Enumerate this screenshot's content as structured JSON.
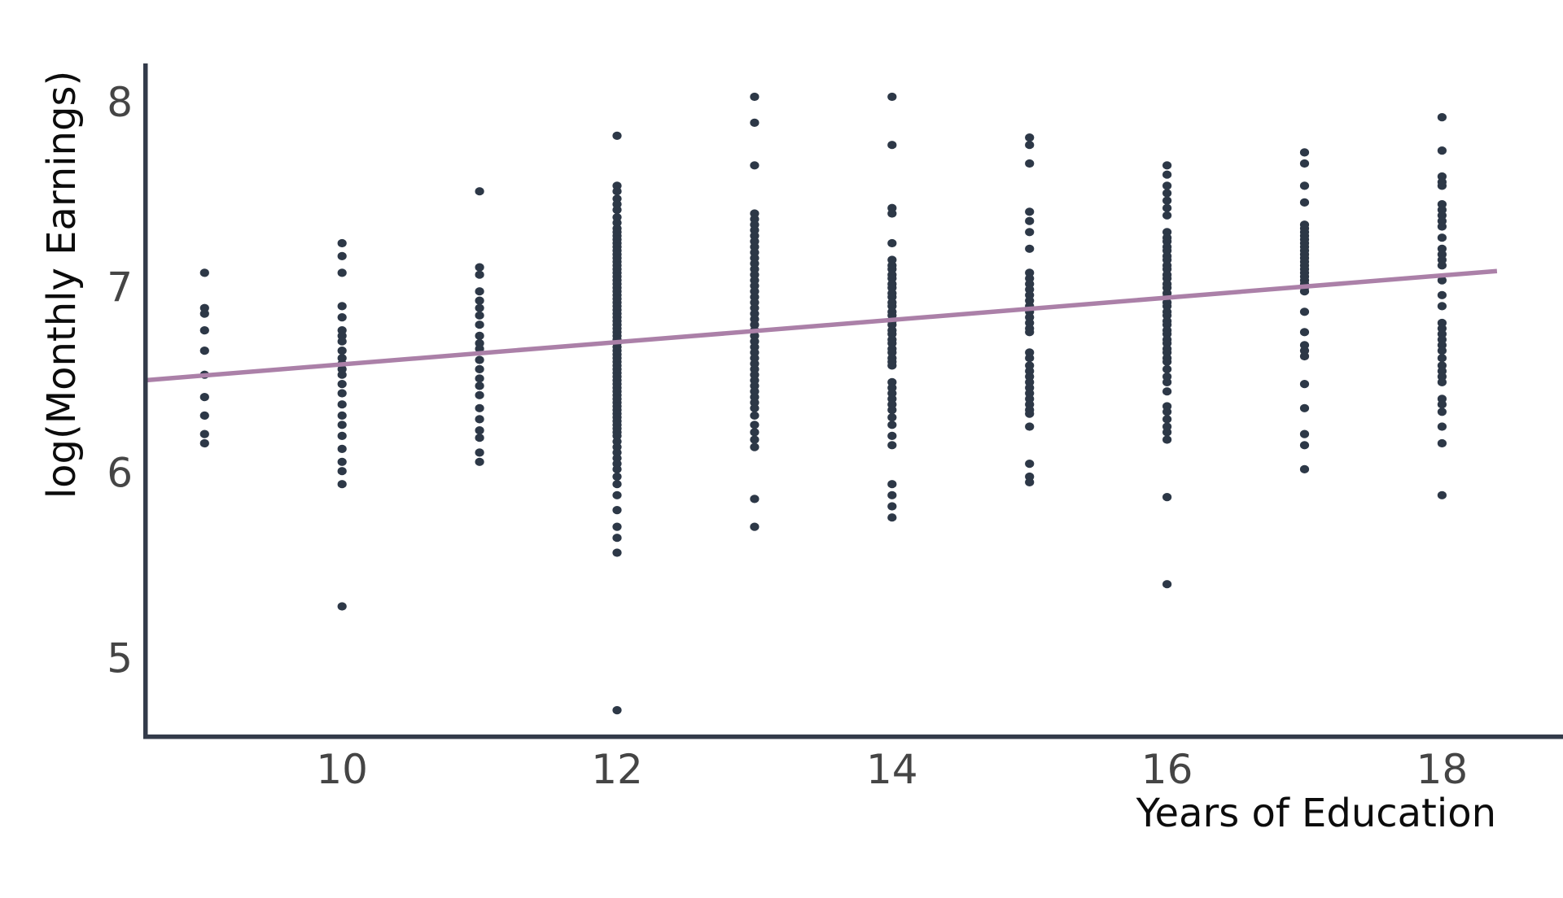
{
  "chart_data": {
    "type": "scatter",
    "title": "",
    "xlabel": "Years of Education",
    "ylabel": "log(Monthly Earnings)",
    "x_ticks": [
      10,
      12,
      14,
      16,
      18
    ],
    "y_ticks": [
      5,
      6,
      7,
      8
    ],
    "xlim": [
      8.56,
      18.88
    ],
    "ylim": [
      4.58,
      8.21
    ],
    "grid": false,
    "legend": "none",
    "colors": {
      "point": "#2d3847",
      "trend": "#ab80a8",
      "axis": "#333b4a",
      "tick": "#454545",
      "label": "#0c0c0c",
      "background": "#ffffff"
    },
    "regression_line": {
      "x1": 8.56,
      "y1": 6.5,
      "x2": 18.4,
      "y2": 7.09,
      "slope": 0.06,
      "intercept": 5.99
    },
    "groups": [
      {
        "x": 9,
        "y": [
          7.08,
          6.89,
          6.86,
          6.77,
          6.66,
          6.53,
          6.41,
          6.31,
          6.21,
          6.16
        ]
      },
      {
        "x": 10,
        "y": [
          7.24,
          7.17,
          7.08,
          6.9,
          6.84,
          6.77,
          6.74,
          6.71,
          6.66,
          6.62,
          6.59,
          6.56,
          6.53,
          6.48,
          6.43,
          6.37,
          6.31,
          6.26,
          6.2,
          6.13,
          6.06,
          6.01,
          5.94,
          5.28
        ]
      },
      {
        "x": 11,
        "y": [
          7.52,
          7.11,
          7.07,
          6.98,
          6.93,
          6.89,
          6.85,
          6.8,
          6.74,
          6.7,
          6.67,
          6.61,
          6.56,
          6.51,
          6.47,
          6.42,
          6.35,
          6.29,
          6.23,
          6.19,
          6.11,
          6.06
        ]
      },
      {
        "x": 12,
        "y": [
          7.82,
          7.55,
          7.52,
          7.48,
          7.45,
          7.42,
          7.38,
          7.35,
          7.32,
          7.3,
          7.28,
          7.26,
          7.24,
          7.22,
          7.2,
          7.18,
          7.16,
          7.14,
          7.12,
          7.1,
          7.08,
          7.06,
          7.04,
          7.02,
          7.0,
          6.98,
          6.96,
          6.94,
          6.92,
          6.9,
          6.88,
          6.86,
          6.84,
          6.82,
          6.8,
          6.78,
          6.76,
          6.74,
          6.72,
          6.7,
          6.68,
          6.66,
          6.64,
          6.62,
          6.6,
          6.58,
          6.56,
          6.54,
          6.52,
          6.5,
          6.48,
          6.46,
          6.44,
          6.42,
          6.4,
          6.38,
          6.36,
          6.34,
          6.32,
          6.3,
          6.28,
          6.26,
          6.24,
          6.22,
          6.2,
          6.17,
          6.14,
          6.11,
          6.08,
          6.05,
          6.02,
          5.98,
          5.94,
          5.88,
          5.8,
          5.71,
          5.65,
          5.57,
          4.72
        ]
      },
      {
        "x": 13,
        "y": [
          8.03,
          7.89,
          7.66,
          7.4,
          7.37,
          7.34,
          7.31,
          7.28,
          7.25,
          7.22,
          7.19,
          7.16,
          7.13,
          7.1,
          7.07,
          7.04,
          7.01,
          6.98,
          6.95,
          6.92,
          6.89,
          6.86,
          6.83,
          6.8,
          6.77,
          6.74,
          6.71,
          6.68,
          6.65,
          6.62,
          6.59,
          6.56,
          6.53,
          6.5,
          6.47,
          6.44,
          6.41,
          6.38,
          6.35,
          6.31,
          6.26,
          6.22,
          6.18,
          6.14,
          5.86,
          5.71
        ]
      },
      {
        "x": 14,
        "y": [
          8.03,
          7.77,
          7.43,
          7.4,
          7.24,
          7.15,
          7.12,
          7.1,
          7.07,
          7.05,
          7.02,
          7.0,
          6.97,
          6.95,
          6.92,
          6.9,
          6.87,
          6.85,
          6.82,
          6.8,
          6.77,
          6.75,
          6.72,
          6.7,
          6.67,
          6.65,
          6.62,
          6.6,
          6.58,
          6.49,
          6.46,
          6.43,
          6.4,
          6.37,
          6.34,
          6.3,
          6.26,
          6.2,
          6.15,
          5.94,
          5.88,
          5.82,
          5.76
        ]
      },
      {
        "x": 15,
        "y": [
          7.81,
          7.77,
          7.67,
          7.41,
          7.36,
          7.3,
          7.21,
          7.08,
          7.05,
          7.02,
          6.99,
          6.96,
          6.93,
          6.9,
          6.87,
          6.84,
          6.81,
          6.78,
          6.76,
          6.65,
          6.62,
          6.58,
          6.55,
          6.52,
          6.49,
          6.46,
          6.43,
          6.4,
          6.37,
          6.34,
          6.32,
          6.25,
          6.05,
          5.98,
          5.95
        ]
      },
      {
        "x": 16,
        "y": [
          7.66,
          7.61,
          7.55,
          7.51,
          7.47,
          7.43,
          7.39,
          7.3,
          7.27,
          7.25,
          7.22,
          7.2,
          7.17,
          7.15,
          7.12,
          7.1,
          7.07,
          7.05,
          7.02,
          7.0,
          6.97,
          6.95,
          6.92,
          6.9,
          6.87,
          6.85,
          6.82,
          6.8,
          6.77,
          6.75,
          6.72,
          6.7,
          6.67,
          6.65,
          6.62,
          6.6,
          6.56,
          6.52,
          6.49,
          6.44,
          6.36,
          6.33,
          6.29,
          6.25,
          6.22,
          6.18,
          5.87,
          5.4
        ]
      },
      {
        "x": 17,
        "y": [
          7.73,
          7.67,
          7.55,
          7.46,
          7.34,
          7.32,
          7.3,
          7.28,
          7.26,
          7.24,
          7.22,
          7.2,
          7.18,
          7.16,
          7.14,
          7.12,
          7.1,
          7.08,
          7.06,
          7.04,
          7.02,
          7.0,
          6.98,
          6.87,
          6.76,
          6.69,
          6.66,
          6.63,
          6.48,
          6.35,
          6.21,
          6.15,
          6.02
        ]
      },
      {
        "x": 18,
        "y": [
          7.92,
          7.74,
          7.6,
          7.57,
          7.55,
          7.45,
          7.42,
          7.39,
          7.36,
          7.33,
          7.27,
          7.21,
          7.18,
          7.15,
          7.12,
          7.04,
          6.96,
          6.9,
          6.81,
          6.78,
          6.75,
          6.72,
          6.69,
          6.66,
          6.62,
          6.58,
          6.55,
          6.52,
          6.49,
          6.4,
          6.37,
          6.33,
          6.25,
          6.16,
          5.88
        ]
      }
    ]
  }
}
